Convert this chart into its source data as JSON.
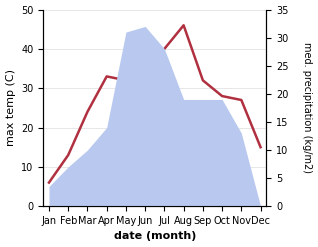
{
  "months": [
    "Jan",
    "Feb",
    "Mar",
    "Apr",
    "May",
    "Jun",
    "Jul",
    "Aug",
    "Sep",
    "Oct",
    "Nov",
    "Dec"
  ],
  "temp": [
    6,
    13,
    24,
    33,
    32,
    36,
    40,
    46,
    32,
    28,
    27,
    15
  ],
  "precip": [
    3.5,
    7,
    10,
    14,
    31,
    32,
    28,
    19,
    19,
    19,
    13,
    0
  ],
  "temp_color": "#b03040",
  "precip_fill_color": "#b8c8ee",
  "ylabel_left": "max temp (C)",
  "ylabel_right": "med. precipitation (kg/m2)",
  "xlabel": "date (month)",
  "ylim_left": [
    0,
    50
  ],
  "ylim_right": [
    0,
    35
  ],
  "bg_color": "#ffffff",
  "label_fontsize": 8,
  "tick_fontsize": 7
}
